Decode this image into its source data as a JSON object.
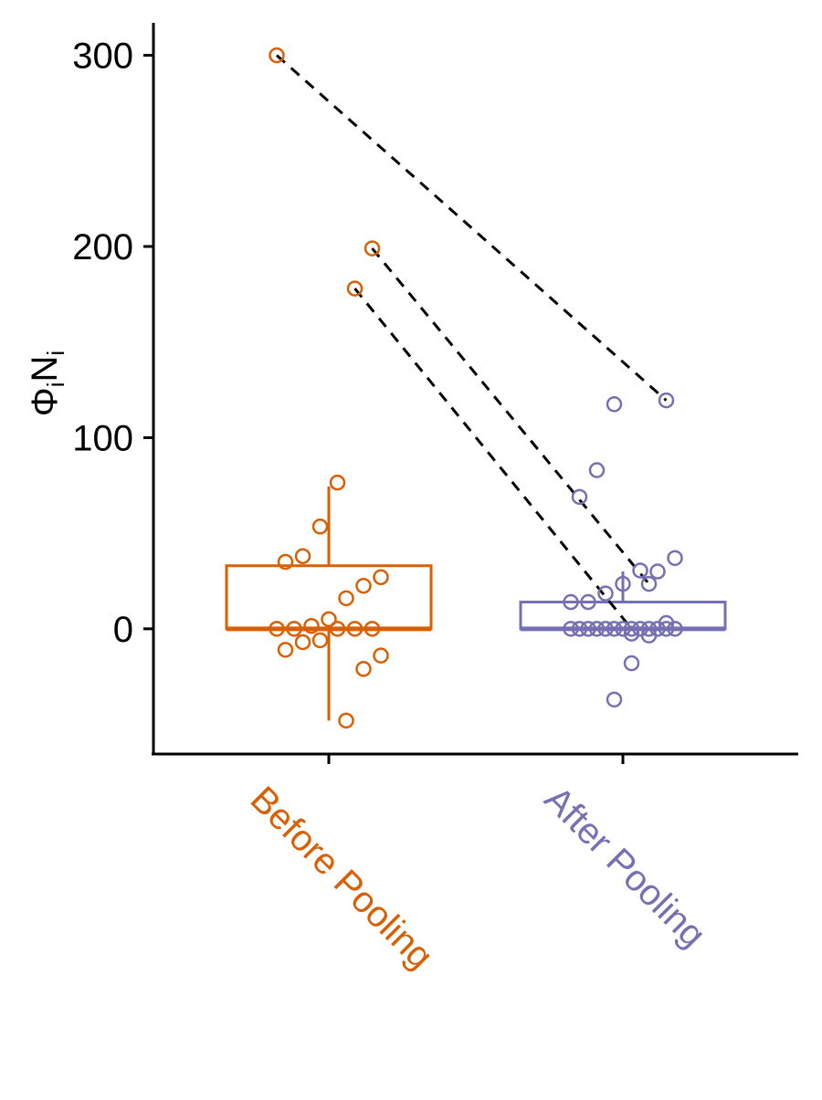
{
  "chart_data": {
    "type": "box-jitter",
    "ylabel": [
      "Φ",
      "i",
      "N",
      "i"
    ],
    "categories": [
      "Before Pooling",
      "After Pooling"
    ],
    "colors": [
      "#d95f02",
      "#7570b3"
    ],
    "ylim": [
      -65.5,
      317
    ],
    "yticks": [
      0,
      100,
      200,
      300
    ],
    "boxes": [
      {
        "whisker_low": -48,
        "q1": 0,
        "median": 0,
        "q3": 33,
        "whisker_high": 74.5
      },
      {
        "whisker_low": 0,
        "q1": 0,
        "median": 0,
        "q3": 14,
        "whisker_high": 30
      }
    ],
    "points": [
      [
        300,
        199,
        178,
        76.5,
        53.5,
        38,
        35,
        27,
        22.5,
        16,
        5,
        1.5,
        0,
        0,
        0,
        0,
        0,
        -6,
        -7,
        -11,
        -14,
        -21,
        -48
      ],
      [
        119.5,
        23.5,
        0,
        117.5,
        83,
        69,
        37,
        30,
        30.5,
        23.5,
        18.5,
        14,
        14,
        3,
        -3.5,
        -2.5,
        0,
        0,
        0,
        0,
        0,
        0,
        0,
        0,
        0,
        0,
        0,
        0,
        -18,
        -37
      ]
    ],
    "pairs": [
      [
        0,
        0
      ],
      [
        1,
        1
      ],
      [
        2,
        2
      ]
    ]
  }
}
